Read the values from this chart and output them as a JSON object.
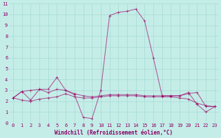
{
  "xlabel": "Windchill (Refroidissement éolien,°C)",
  "background_color": "#c5ede8",
  "grid_color": "#aaddd6",
  "line_color": "#99006699",
  "xlim": [
    -0.5,
    23.5
  ],
  "ylim": [
    0,
    11
  ],
  "xticks": [
    0,
    1,
    2,
    3,
    4,
    5,
    6,
    7,
    8,
    9,
    10,
    11,
    12,
    13,
    14,
    15,
    16,
    17,
    18,
    19,
    20,
    21,
    22,
    23
  ],
  "yticks": [
    0,
    1,
    2,
    3,
    4,
    5,
    6,
    7,
    8,
    9,
    10,
    11
  ],
  "series1_x": [
    0,
    1,
    2,
    3,
    4,
    5,
    6,
    7,
    8,
    9,
    10,
    11,
    12,
    13,
    14,
    15,
    16,
    17,
    18,
    19,
    20,
    21,
    22,
    23
  ],
  "series1_y": [
    2.3,
    2.9,
    2.1,
    3.1,
    3.1,
    4.2,
    3.0,
    2.6,
    0.5,
    0.4,
    3.0,
    9.9,
    10.2,
    10.3,
    10.5,
    9.4,
    6.0,
    2.5,
    2.5,
    2.5,
    2.8,
    1.7,
    1.0,
    1.5
  ],
  "series2_x": [
    0,
    1,
    2,
    3,
    4,
    5,
    6,
    7,
    8,
    9,
    10,
    11,
    12,
    13,
    14,
    15,
    16,
    17,
    18,
    19,
    20,
    21,
    22,
    23
  ],
  "series2_y": [
    2.3,
    2.1,
    2.0,
    2.2,
    2.3,
    2.4,
    2.7,
    2.4,
    2.3,
    2.3,
    2.4,
    2.5,
    2.5,
    2.5,
    2.5,
    2.4,
    2.4,
    2.4,
    2.4,
    2.3,
    2.2,
    1.8,
    1.6,
    1.5
  ],
  "series3_x": [
    0,
    1,
    2,
    3,
    4,
    5,
    6,
    7,
    8,
    9,
    10,
    11,
    12,
    13,
    14,
    15,
    16,
    17,
    18,
    19,
    20,
    21,
    22,
    23
  ],
  "series3_y": [
    2.3,
    2.9,
    3.0,
    3.1,
    2.8,
    3.1,
    3.0,
    2.7,
    2.5,
    2.4,
    2.5,
    2.6,
    2.6,
    2.6,
    2.6,
    2.5,
    2.5,
    2.5,
    2.5,
    2.5,
    2.7,
    2.8,
    1.5,
    1.5
  ],
  "tick_color": "#880066",
  "xlabel_color": "#880066",
  "tick_fontsize": 5.0,
  "xlabel_fontsize": 5.5
}
